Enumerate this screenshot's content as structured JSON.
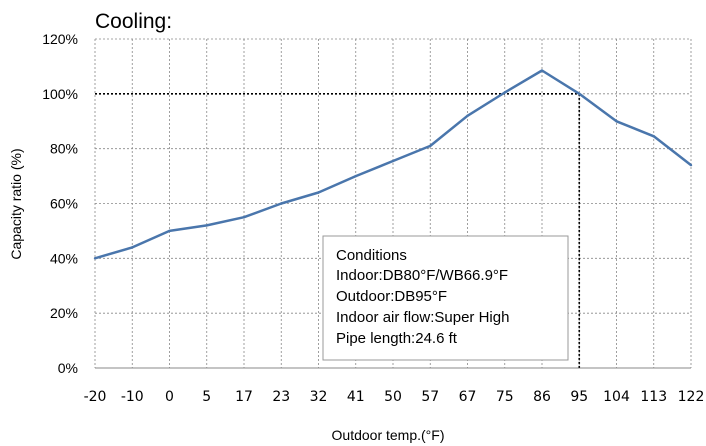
{
  "chart_data": {
    "type": "line",
    "title": "Cooling:",
    "xlabel": "Outdoor temp.(°F)",
    "ylabel": "Capacity ratio (%)",
    "categories": [
      "-20",
      "-10",
      "0",
      "5",
      "17",
      "23",
      "32",
      "41",
      "50",
      "57",
      "67",
      "75",
      "86",
      "95",
      "104",
      "113",
      "122"
    ],
    "yticks": [
      "0%",
      "20%",
      "40%",
      "60%",
      "80%",
      "100%",
      "120%"
    ],
    "ylim": [
      0,
      120
    ],
    "grid": true,
    "series": [
      {
        "values": [
          40,
          44,
          50,
          52,
          55,
          60,
          64,
          70,
          75.5,
          81,
          92,
          100.5,
          108.5,
          100,
          90,
          84.5,
          74
        ],
        "color": "#4a76ac"
      }
    ],
    "reference_line": {
      "y": 100,
      "x": "95",
      "style": "dotted"
    },
    "conditions": {
      "header": "Conditions",
      "lines": [
        "Indoor:DB80°F/WB66.9°F",
        "Outdoor:DB95°F",
        "Indoor air flow:Super High",
        "Pipe length:24.6 ft"
      ]
    }
  }
}
